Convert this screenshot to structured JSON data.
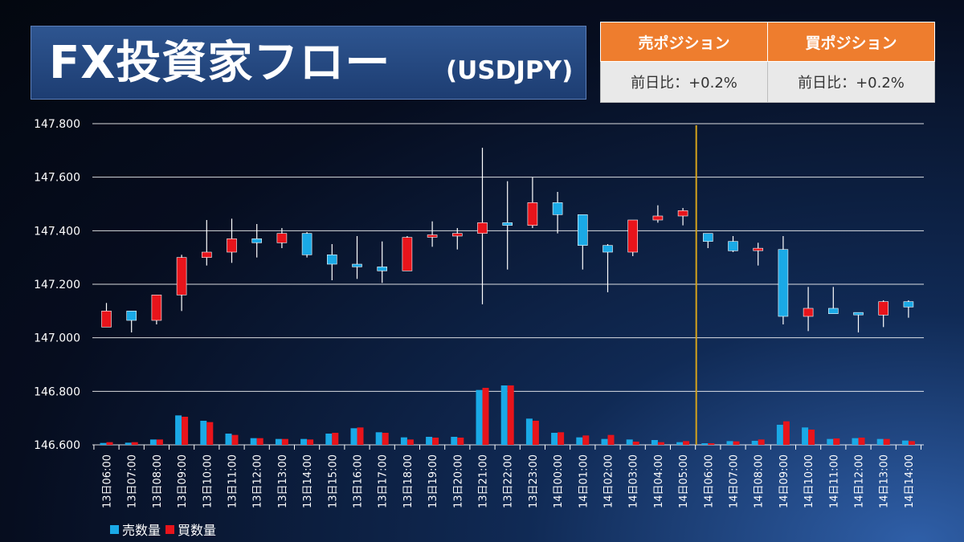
{
  "header": {
    "title": "FX投資家フロー",
    "pair": "(USDJPY)"
  },
  "positions": {
    "sell_header": "売ポジション",
    "buy_header": "買ポジション",
    "sell_change": "前日比：+0.2%",
    "buy_change": "前日比：+0.2%"
  },
  "legend": {
    "sell_label": "売数量",
    "buy_label": "買数量"
  },
  "colors": {
    "sell": "#1aa9e6",
    "buy": "#e8141b",
    "divider": "#d4a21c",
    "gridline": "#ffffff"
  },
  "chart_data": {
    "type": "candlestick",
    "title": "FX投資家フロー(USDJPY)",
    "ylim": [
      146.6,
      147.8
    ],
    "yticks": [
      "147.800",
      "147.600",
      "147.400",
      "147.200",
      "147.000",
      "146.800",
      "146.600"
    ],
    "ytick_values": [
      147.8,
      147.6,
      147.4,
      147.2,
      147.0,
      146.8,
      146.6
    ],
    "grid": true,
    "legend_position": "bottom-left",
    "divider_after_category": "14日05:00",
    "categories": [
      "13日06:00",
      "13日07:00",
      "13日08:00",
      "13日09:00",
      "13日10:00",
      "13日11:00",
      "13日12:00",
      "13日13:00",
      "13日14:00",
      "13日15:00",
      "13日16:00",
      "13日17:00",
      "13日18:00",
      "13日19:00",
      "13日20:00",
      "13日21:00",
      "13日22:00",
      "13日23:00",
      "14日00:00",
      "14日01:00",
      "14日02:00",
      "14日03:00",
      "14日04:00",
      "14日05:00",
      "14日06:00",
      "14日07:00",
      "14日08:00",
      "14日09:00",
      "14日10:00",
      "14日11:00",
      "14日12:00",
      "14日13:00",
      "14日14:00"
    ],
    "candles": [
      {
        "o": 147.04,
        "h": 147.13,
        "l": 147.04,
        "c": 147.1
      },
      {
        "o": 147.1,
        "h": 147.1,
        "l": 147.02,
        "c": 147.065
      },
      {
        "o": 147.065,
        "h": 147.16,
        "l": 147.05,
        "c": 147.16
      },
      {
        "o": 147.16,
        "h": 147.31,
        "l": 147.1,
        "c": 147.3
      },
      {
        "o": 147.3,
        "h": 147.44,
        "l": 147.27,
        "c": 147.32
      },
      {
        "o": 147.32,
        "h": 147.445,
        "l": 147.28,
        "c": 147.37
      },
      {
        "o": 147.37,
        "h": 147.425,
        "l": 147.3,
        "c": 147.355
      },
      {
        "o": 147.355,
        "h": 147.41,
        "l": 147.335,
        "c": 147.39
      },
      {
        "o": 147.39,
        "h": 147.395,
        "l": 147.3,
        "c": 147.31
      },
      {
        "o": 147.31,
        "h": 147.35,
        "l": 147.215,
        "c": 147.275
      },
      {
        "o": 147.275,
        "h": 147.38,
        "l": 147.22,
        "c": 147.265
      },
      {
        "o": 147.265,
        "h": 147.36,
        "l": 147.205,
        "c": 147.25
      },
      {
        "o": 147.25,
        "h": 147.38,
        "l": 147.25,
        "c": 147.375
      },
      {
        "o": 147.375,
        "h": 147.435,
        "l": 147.34,
        "c": 147.38
      },
      {
        "o": 147.38,
        "h": 147.41,
        "l": 147.33,
        "c": 147.39
      },
      {
        "o": 147.39,
        "h": 147.71,
        "l": 147.125,
        "c": 147.43
      },
      {
        "o": 147.43,
        "h": 147.585,
        "l": 147.255,
        "c": 147.42
      },
      {
        "o": 147.42,
        "h": 147.6,
        "l": 147.41,
        "c": 147.505
      },
      {
        "o": 147.505,
        "h": 147.545,
        "l": 147.39,
        "c": 147.46
      },
      {
        "o": 147.46,
        "h": 147.46,
        "l": 147.255,
        "c": 147.345
      },
      {
        "o": 147.345,
        "h": 147.35,
        "l": 147.17,
        "c": 147.32
      },
      {
        "o": 147.32,
        "h": 147.44,
        "l": 147.305,
        "c": 147.44
      },
      {
        "o": 147.44,
        "h": 147.495,
        "l": 147.43,
        "c": 147.455
      },
      {
        "o": 147.455,
        "h": 147.485,
        "l": 147.42,
        "c": 147.475
      },
      {
        "o": 147.39,
        "h": 147.39,
        "l": 147.335,
        "c": 147.36
      },
      {
        "o": 147.36,
        "h": 147.38,
        "l": 147.32,
        "c": 147.325
      },
      {
        "o": 147.325,
        "h": 147.355,
        "l": 147.27,
        "c": 147.33
      },
      {
        "o": 147.33,
        "h": 147.38,
        "l": 147.05,
        "c": 147.08
      },
      {
        "o": 147.08,
        "h": 147.19,
        "l": 147.025,
        "c": 147.11
      },
      {
        "o": 147.11,
        "h": 147.19,
        "l": 147.09,
        "c": 147.09
      },
      {
        "o": 147.09,
        "h": 147.09,
        "l": 147.02,
        "c": 147.085
      },
      {
        "o": 147.085,
        "h": 147.14,
        "l": 147.04,
        "c": 147.135
      },
      {
        "o": 147.135,
        "h": 147.14,
        "l": 147.075,
        "c": 147.115
      }
    ],
    "series": [
      {
        "name": "売数量",
        "values": [
          146.607,
          146.608,
          146.62,
          146.71,
          146.69,
          146.642,
          146.625,
          146.622,
          146.622,
          146.642,
          146.662,
          146.647,
          146.628,
          146.63,
          146.63,
          146.805,
          146.822,
          146.698,
          146.645,
          146.628,
          146.622,
          146.62,
          146.618,
          146.61,
          146.606,
          146.614,
          146.615,
          146.675,
          146.665,
          146.622,
          146.625,
          146.622,
          146.616
        ]
      },
      {
        "name": "買数量",
        "values": [
          146.61,
          146.61,
          146.62,
          146.705,
          146.685,
          146.637,
          146.625,
          146.622,
          146.62,
          146.645,
          146.665,
          146.645,
          146.62,
          146.627,
          146.627,
          146.813,
          146.822,
          146.69,
          146.647,
          146.635,
          146.637,
          146.612,
          146.61,
          146.614,
          146.606,
          146.613,
          146.62,
          146.688,
          146.657,
          146.624,
          146.627,
          146.622,
          146.614
        ]
      }
    ]
  }
}
